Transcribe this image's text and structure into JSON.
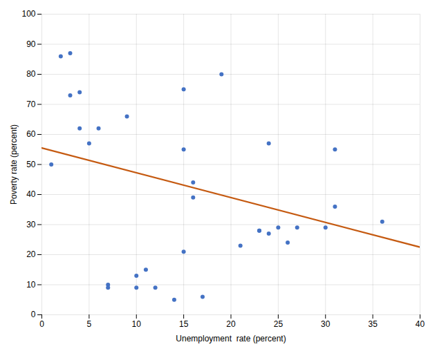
{
  "chart_data": {
    "type": "scatter",
    "xlabel": "Unemployment  rate (percent)",
    "ylabel": "Poverty rate (percent)",
    "series": [
      {
        "type": "scatter",
        "color": "#4472C4",
        "x": [
          1,
          2,
          3,
          3,
          4,
          4,
          5,
          6,
          7,
          7,
          9,
          10,
          10,
          11,
          12,
          14,
          15,
          15,
          15,
          16,
          16,
          17,
          19,
          21,
          23,
          23,
          24,
          24,
          25,
          26,
          27,
          30,
          31,
          31,
          36
        ],
        "values": [
          50,
          86,
          87,
          73,
          74,
          62,
          57,
          62,
          10,
          9,
          66,
          9,
          13,
          15,
          9,
          5,
          21,
          55,
          75,
          39,
          44,
          6,
          80,
          23,
          28,
          28,
          57,
          27,
          29,
          24,
          29,
          29,
          55,
          36,
          31
        ]
      },
      {
        "type": "line",
        "color": "#C55A11",
        "x": [
          0,
          40
        ],
        "values": [
          55.5,
          22.5
        ]
      }
    ],
    "xlim": [
      0,
      40
    ],
    "ylim": [
      0,
      100
    ],
    "xticks": [
      0,
      5,
      10,
      15,
      20,
      25,
      30,
      35,
      40
    ],
    "yticks": [
      0,
      10,
      20,
      30,
      40,
      50,
      60,
      70,
      80,
      90,
      100
    ],
    "grid": true
  }
}
